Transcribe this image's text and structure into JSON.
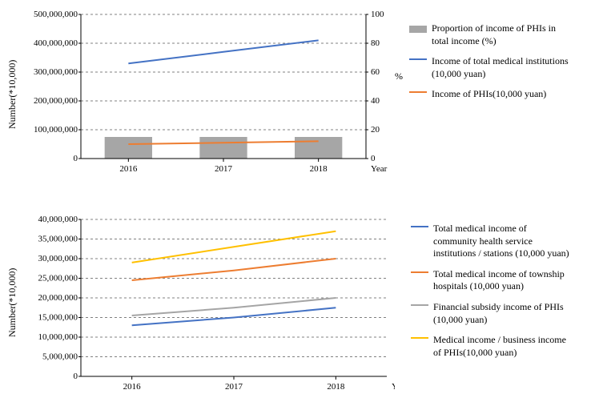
{
  "top_chart": {
    "type": "combo-bar-line",
    "categories": [
      "2016",
      "2017",
      "2018"
    ],
    "left_axis": {
      "label": "Number(*10,000)",
      "ylim": [
        0,
        500000000
      ],
      "ytick_step": 100000000,
      "tick_labels": [
        "0",
        "100,000,000",
        "200,000,000",
        "300,000,000",
        "400,000,000",
        "500,000,000"
      ]
    },
    "right_axis": {
      "label": "%",
      "ylim": [
        0,
        100
      ],
      "ytick_step": 20,
      "tick_labels": [
        "0",
        "20",
        "40",
        "60",
        "80",
        "100"
      ]
    },
    "xlabel": "Year",
    "bars": {
      "name": "Proportion of income of PHIs in total income (%)",
      "color": "#a6a6a6",
      "values_right_axis": [
        15,
        15,
        15
      ],
      "bar_width": 0.5
    },
    "line1": {
      "name": "Income of total medical institutions (10,000 yuan)",
      "color": "#4472c4",
      "values_left_axis": [
        330000000,
        370000000,
        410000000
      ],
      "stroke_width": 2
    },
    "line2": {
      "name": "Income of PHIs(10,000 yuan)",
      "color": "#ed7d31",
      "values_left_axis": [
        50000000,
        55000000,
        60000000
      ],
      "stroke_width": 2
    },
    "grid_color": "#808080",
    "background_color": "#ffffff"
  },
  "bottom_chart": {
    "type": "line",
    "categories": [
      "2016",
      "2017",
      "2018"
    ],
    "y_axis": {
      "label": "Number(*10,000)",
      "ylim": [
        0,
        40000000
      ],
      "ytick_step": 5000000,
      "tick_labels": [
        "0",
        "5,000,000",
        "10,000,000",
        "15,000,000",
        "20,000,000",
        "25,000,000",
        "30,000,000",
        "35,000,000",
        "40,000,000"
      ]
    },
    "xlabel": "Year",
    "line1": {
      "name": "Total medical income of community health service institutions / stations (10,000 yuan)",
      "color": "#4472c4",
      "values": [
        13000000,
        15000000,
        17500000
      ],
      "stroke_width": 2
    },
    "line2": {
      "name": "Total medical income of township hospitals (10,000 yuan)",
      "color": "#ed7d31",
      "values": [
        24500000,
        27000000,
        30000000
      ],
      "stroke_width": 2
    },
    "line3": {
      "name": "Financial subsidy income of PHIs (10,000 yuan)",
      "color": "#a5a5a5",
      "values": [
        15500000,
        17500000,
        20000000
      ],
      "stroke_width": 2
    },
    "line4": {
      "name": "Medical income / business income of PHIs(10,000 yuan)",
      "color": "#ffc000",
      "values": [
        29000000,
        33000000,
        37000000
      ],
      "stroke_width": 2
    },
    "grid_color": "#808080",
    "background_color": "#ffffff"
  }
}
